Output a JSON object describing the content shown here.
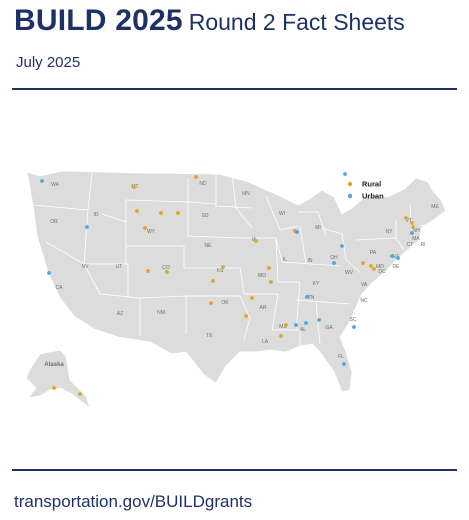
{
  "header": {
    "title": "BUILD 2025",
    "subtitle": "Round 2 Fact Sheets",
    "date": "July 2025"
  },
  "footer": {
    "url": "transportation.gov/BUILDgrants"
  },
  "colors": {
    "brand_navy": "#1e3166",
    "rural": "#e0a526",
    "urban": "#4aa9e0",
    "land": "#dcdcdc",
    "border": "#ffffff"
  },
  "map": {
    "legend": [
      {
        "label": "Rural",
        "color": "#e0a526"
      },
      {
        "label": "Urban",
        "color": "#4aa9e0"
      }
    ],
    "alaska_label": "Alaska",
    "state_labels": [
      "WA",
      "OR",
      "ID",
      "MT",
      "ND",
      "MN",
      "WI",
      "MI",
      "NY",
      "VT",
      "ME",
      "NH",
      "MA",
      "CT",
      "RI",
      "NJ",
      "PA",
      "OH",
      "IN",
      "IL",
      "IA",
      "SD",
      "WY",
      "NE",
      "NV",
      "CA",
      "UT",
      "CO",
      "KS",
      "MO",
      "KY",
      "WV",
      "VA",
      "NC",
      "TN",
      "AR",
      "OK",
      "NM",
      "AZ",
      "TX",
      "LA",
      "MS",
      "AL",
      "GA",
      "SC",
      "FL",
      "DE",
      "MD",
      "DC"
    ],
    "projects": [
      {
        "type": "Rural"
      },
      {
        "type": "Rural"
      },
      {
        "type": "Rural"
      },
      {
        "type": "Rural"
      },
      {
        "type": "Rural"
      },
      {
        "type": "Rural"
      },
      {
        "type": "Rural"
      },
      {
        "type": "Rural"
      },
      {
        "type": "Rural"
      },
      {
        "type": "Rural"
      },
      {
        "type": "Rural"
      },
      {
        "type": "Rural"
      },
      {
        "type": "Rural"
      },
      {
        "type": "Rural"
      },
      {
        "type": "Rural"
      },
      {
        "type": "Rural"
      },
      {
        "type": "Rural"
      },
      {
        "type": "Rural"
      },
      {
        "type": "Rural"
      },
      {
        "type": "Rural"
      },
      {
        "type": "Rural"
      },
      {
        "type": "Rural"
      },
      {
        "type": "Rural"
      },
      {
        "type": "Rural"
      },
      {
        "type": "Rural"
      },
      {
        "type": "Rural"
      },
      {
        "type": "Rural"
      },
      {
        "type": "Urban"
      },
      {
        "type": "Urban"
      },
      {
        "type": "Urban"
      },
      {
        "type": "Urban"
      },
      {
        "type": "Urban"
      },
      {
        "type": "Urban"
      },
      {
        "type": "Urban"
      },
      {
        "type": "Urban"
      },
      {
        "type": "Urban"
      },
      {
        "type": "Urban"
      },
      {
        "type": "Urban"
      },
      {
        "type": "Urban"
      },
      {
        "type": "Urban"
      },
      {
        "type": "Urban"
      },
      {
        "type": "Urban"
      },
      {
        "type": "Urban"
      },
      {
        "type": "Urban"
      },
      {
        "type": "Urban"
      }
    ]
  }
}
